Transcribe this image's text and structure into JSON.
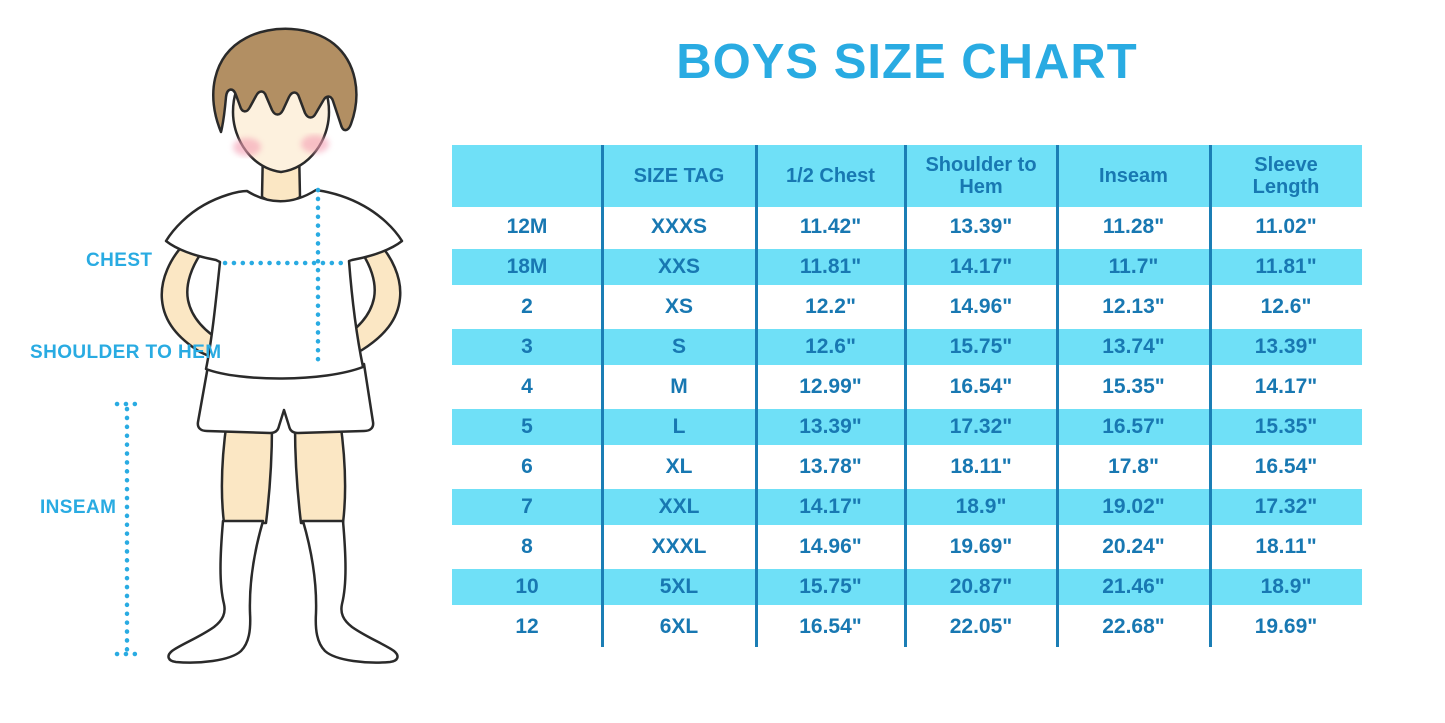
{
  "title": "BOYS SIZE CHART",
  "figure": {
    "chest_label": "CHEST",
    "shoulder_to_hem_label": "SHOULDER TO HEM",
    "inseam_label": "INSEAM"
  },
  "colors": {
    "accent": "#29ABE2",
    "table_stripe": "#6FE0F7",
    "table_text": "#1878B2",
    "grid_line": "#1B7EB5",
    "skin": "#FBE7C4",
    "face": "#FDF1DE",
    "hair": "#B28F63",
    "blush": "#F49FB4"
  },
  "chart_data": {
    "type": "table",
    "title": "BOYS SIZE CHART",
    "columns": [
      "",
      "SIZE TAG",
      "1/2 Chest",
      "Shoulder to Hem",
      "Inseam",
      "Sleeve Length"
    ],
    "rows": [
      [
        "12M",
        "XXXS",
        "11.42\"",
        "13.39\"",
        "11.28\"",
        "11.02\""
      ],
      [
        "18M",
        "XXS",
        "11.81\"",
        "14.17\"",
        "11.7\"",
        "11.81\""
      ],
      [
        "2",
        "XS",
        "12.2\"",
        "14.96\"",
        "12.13\"",
        "12.6\""
      ],
      [
        "3",
        "S",
        "12.6\"",
        "15.75\"",
        "13.74\"",
        "13.39\""
      ],
      [
        "4",
        "M",
        "12.99\"",
        "16.54\"",
        "15.35\"",
        "14.17\""
      ],
      [
        "5",
        "L",
        "13.39\"",
        "17.32\"",
        "16.57\"",
        "15.35\""
      ],
      [
        "6",
        "XL",
        "13.78\"",
        "18.11\"",
        "17.8\"",
        "16.54\""
      ],
      [
        "7",
        "XXL",
        "14.17\"",
        "18.9\"",
        "19.02\"",
        "17.32\""
      ],
      [
        "8",
        "XXXL",
        "14.96\"",
        "19.69\"",
        "20.24\"",
        "18.11\""
      ],
      [
        "10",
        "5XL",
        "15.75\"",
        "20.87\"",
        "21.46\"",
        "18.9\""
      ],
      [
        "12",
        "6XL",
        "16.54\"",
        "22.05\"",
        "22.68\"",
        "19.69\""
      ]
    ],
    "row_striping": "alternating white / light-cyan starting white",
    "units": "inches"
  }
}
